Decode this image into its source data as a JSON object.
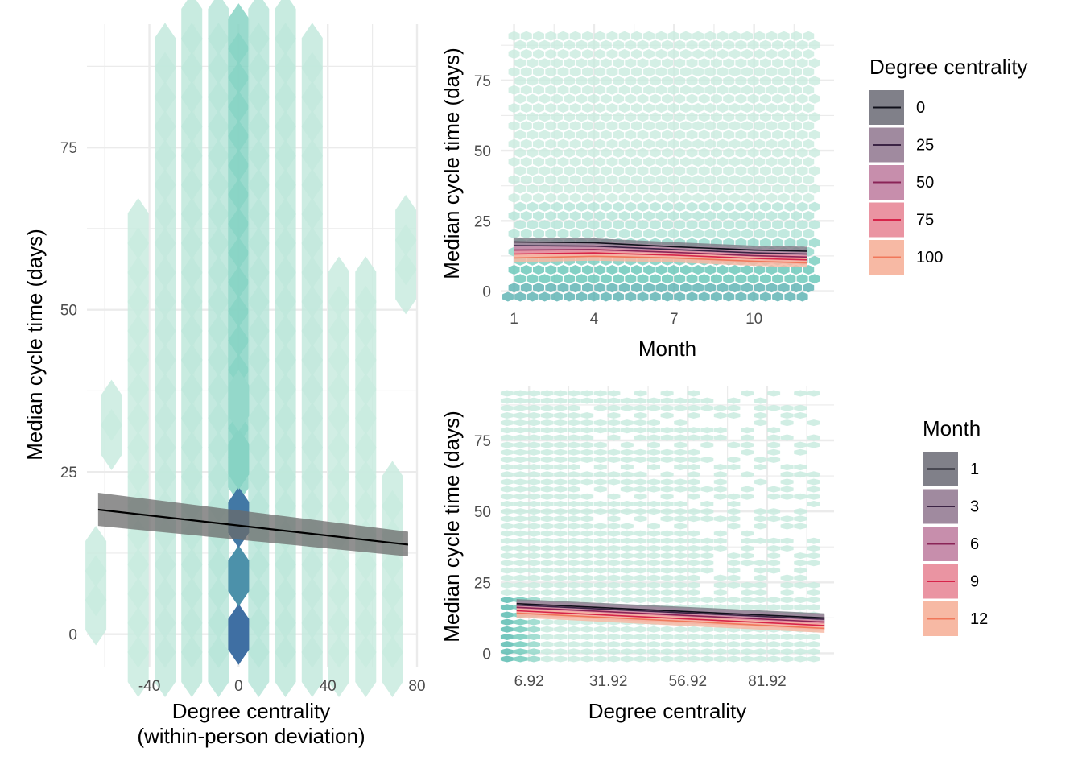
{
  "colors": {
    "grid": "#ebebeb",
    "hex_low": "#e3f5ea",
    "hex_mid": "#5fc4b4",
    "hex_high": "#3f6fa3",
    "fit_line": "#000000",
    "ribbon": "#6b6b6b"
  },
  "chart_data": [
    {
      "type": "hexbin",
      "xlabel": "Degree centrality",
      "xlabel2": "(within-person deviation)",
      "ylabel": "Median cycle time (days)",
      "xlim": [
        -68,
        80
      ],
      "ylim": [
        -5,
        94
      ],
      "xticks": [
        "-40",
        "0",
        "40",
        "80"
      ],
      "xtick_values": [
        -40,
        0,
        40,
        80
      ],
      "yticks": [
        "0",
        "25",
        "50",
        "75"
      ],
      "ytick_values": [
        0,
        25,
        50,
        75
      ],
      "fit": {
        "x": [
          -63,
          76
        ],
        "y": [
          19.2,
          13.8
        ],
        "ci_low": [
          16.7,
          12.0
        ],
        "ci_high": [
          21.8,
          15.8
        ]
      },
      "hex_columns": [
        {
          "x": -64,
          "ymin": 3,
          "ymax": 12,
          "density": 0.1
        },
        {
          "x": -57,
          "ymin": 30,
          "ymax": 38,
          "density": 0.1
        },
        {
          "x": -45,
          "ymin": -5,
          "ymax": 63,
          "density": 0.1
        },
        {
          "x": -33,
          "ymin": -5,
          "ymax": 90,
          "density": 0.12
        },
        {
          "x": -21,
          "ymin": -5,
          "ymax": 94,
          "density": 0.14
        },
        {
          "x": -9,
          "ymin": -5,
          "ymax": 94,
          "density": 0.16
        },
        {
          "x": 0,
          "ymin": 25,
          "ymax": 94,
          "density": 0.35
        },
        {
          "x": 9,
          "ymin": -5,
          "ymax": 94,
          "density": 0.16
        },
        {
          "x": 21,
          "ymin": -5,
          "ymax": 94,
          "density": 0.14
        },
        {
          "x": 33,
          "ymin": -5,
          "ymax": 90,
          "density": 0.12
        },
        {
          "x": 45,
          "ymin": -5,
          "ymax": 57,
          "density": 0.1
        },
        {
          "x": 57,
          "ymin": -5,
          "ymax": 57,
          "density": 0.1
        },
        {
          "x": 69,
          "ymin": -5,
          "ymax": 22,
          "density": 0.1
        },
        {
          "x": 75,
          "ymin": 54,
          "ymax": 65,
          "density": 0.1
        }
      ],
      "hex_hotspots": [
        {
          "x": 0,
          "y": 0,
          "density": 1.0
        },
        {
          "x": 0,
          "y": 9,
          "density": 0.8
        },
        {
          "x": 0,
          "y": 18,
          "density": 0.95
        },
        {
          "x": 0,
          "y": 27,
          "density": 0.35
        },
        {
          "x": 0,
          "y": 36,
          "density": 0.3
        }
      ]
    },
    {
      "type": "hexbin_with_lines",
      "xlabel": "Month",
      "ylabel": "Median cycle time (days)",
      "xlim": [
        0.5,
        13.0
      ],
      "ylim": [
        -3,
        95
      ],
      "xticks": [
        "1",
        "4",
        "7",
        "10"
      ],
      "xtick_values": [
        1,
        4,
        7,
        10
      ],
      "yticks": [
        "0",
        "25",
        "50",
        "75"
      ],
      "ytick_values": [
        0,
        25,
        50,
        75
      ],
      "legend_title": "Degree centrality",
      "legend_position": "right-top",
      "series": [
        {
          "name": "0",
          "color": "#10101a",
          "x": [
            1,
            4,
            7,
            10,
            12
          ],
          "y": [
            17.5,
            17.2,
            15.8,
            14.6,
            14.2
          ]
        },
        {
          "name": "25",
          "color": "#3b2344",
          "x": [
            1,
            4,
            7,
            10,
            12
          ],
          "y": [
            16.2,
            16.0,
            14.8,
            13.6,
            13.2
          ]
        },
        {
          "name": "50",
          "color": "#8a2457",
          "x": [
            1,
            4,
            7,
            10,
            12
          ],
          "y": [
            14.6,
            14.8,
            13.8,
            12.6,
            12.1
          ]
        },
        {
          "name": "75",
          "color": "#d7244a",
          "x": [
            1,
            4,
            7,
            10,
            12
          ],
          "y": [
            13.2,
            13.6,
            12.8,
            11.6,
            11.1
          ]
        },
        {
          "name": "100",
          "color": "#f0785a",
          "x": [
            1,
            4,
            7,
            10,
            12
          ],
          "y": [
            11.8,
            12.4,
            11.8,
            10.6,
            10.0
          ]
        }
      ],
      "ribbon_colors": [
        "#808089",
        "#a08a9f",
        "#c78eac",
        "#ea94a2",
        "#f7b9a4"
      ]
    },
    {
      "type": "hexbin_with_lines",
      "xlabel": "Degree centrality",
      "ylabel": "Median cycle time (days)",
      "xlim": [
        -2,
        103
      ],
      "ylim": [
        -3,
        94
      ],
      "xticks": [
        "6.92",
        "31.92",
        "56.92",
        "81.92"
      ],
      "xtick_values": [
        6.92,
        31.92,
        56.92,
        81.92
      ],
      "yticks": [
        "0",
        "25",
        "50",
        "75"
      ],
      "ytick_values": [
        0,
        25,
        50,
        75
      ],
      "legend_title": "Month",
      "legend_position": "right-bottom",
      "series": [
        {
          "name": "1",
          "color": "#10101a",
          "x": [
            3,
            100
          ],
          "y": [
            17.5,
            12.5
          ]
        },
        {
          "name": "3",
          "color": "#3b2344",
          "x": [
            3,
            100
          ],
          "y": [
            17.0,
            12.0
          ]
        },
        {
          "name": "6",
          "color": "#8a2457",
          "x": [
            3,
            100
          ],
          "y": [
            16.2,
            11.0
          ]
        },
        {
          "name": "9",
          "color": "#d7244a",
          "x": [
            3,
            100
          ],
          "y": [
            15.0,
            9.8
          ]
        },
        {
          "name": "12",
          "color": "#f0785a",
          "x": [
            3,
            100
          ],
          "y": [
            14.2,
            8.8
          ]
        }
      ],
      "ribbon_colors": [
        "#808089",
        "#a08a9f",
        "#c78eac",
        "#ea94a2",
        "#f7b9a4"
      ]
    }
  ]
}
